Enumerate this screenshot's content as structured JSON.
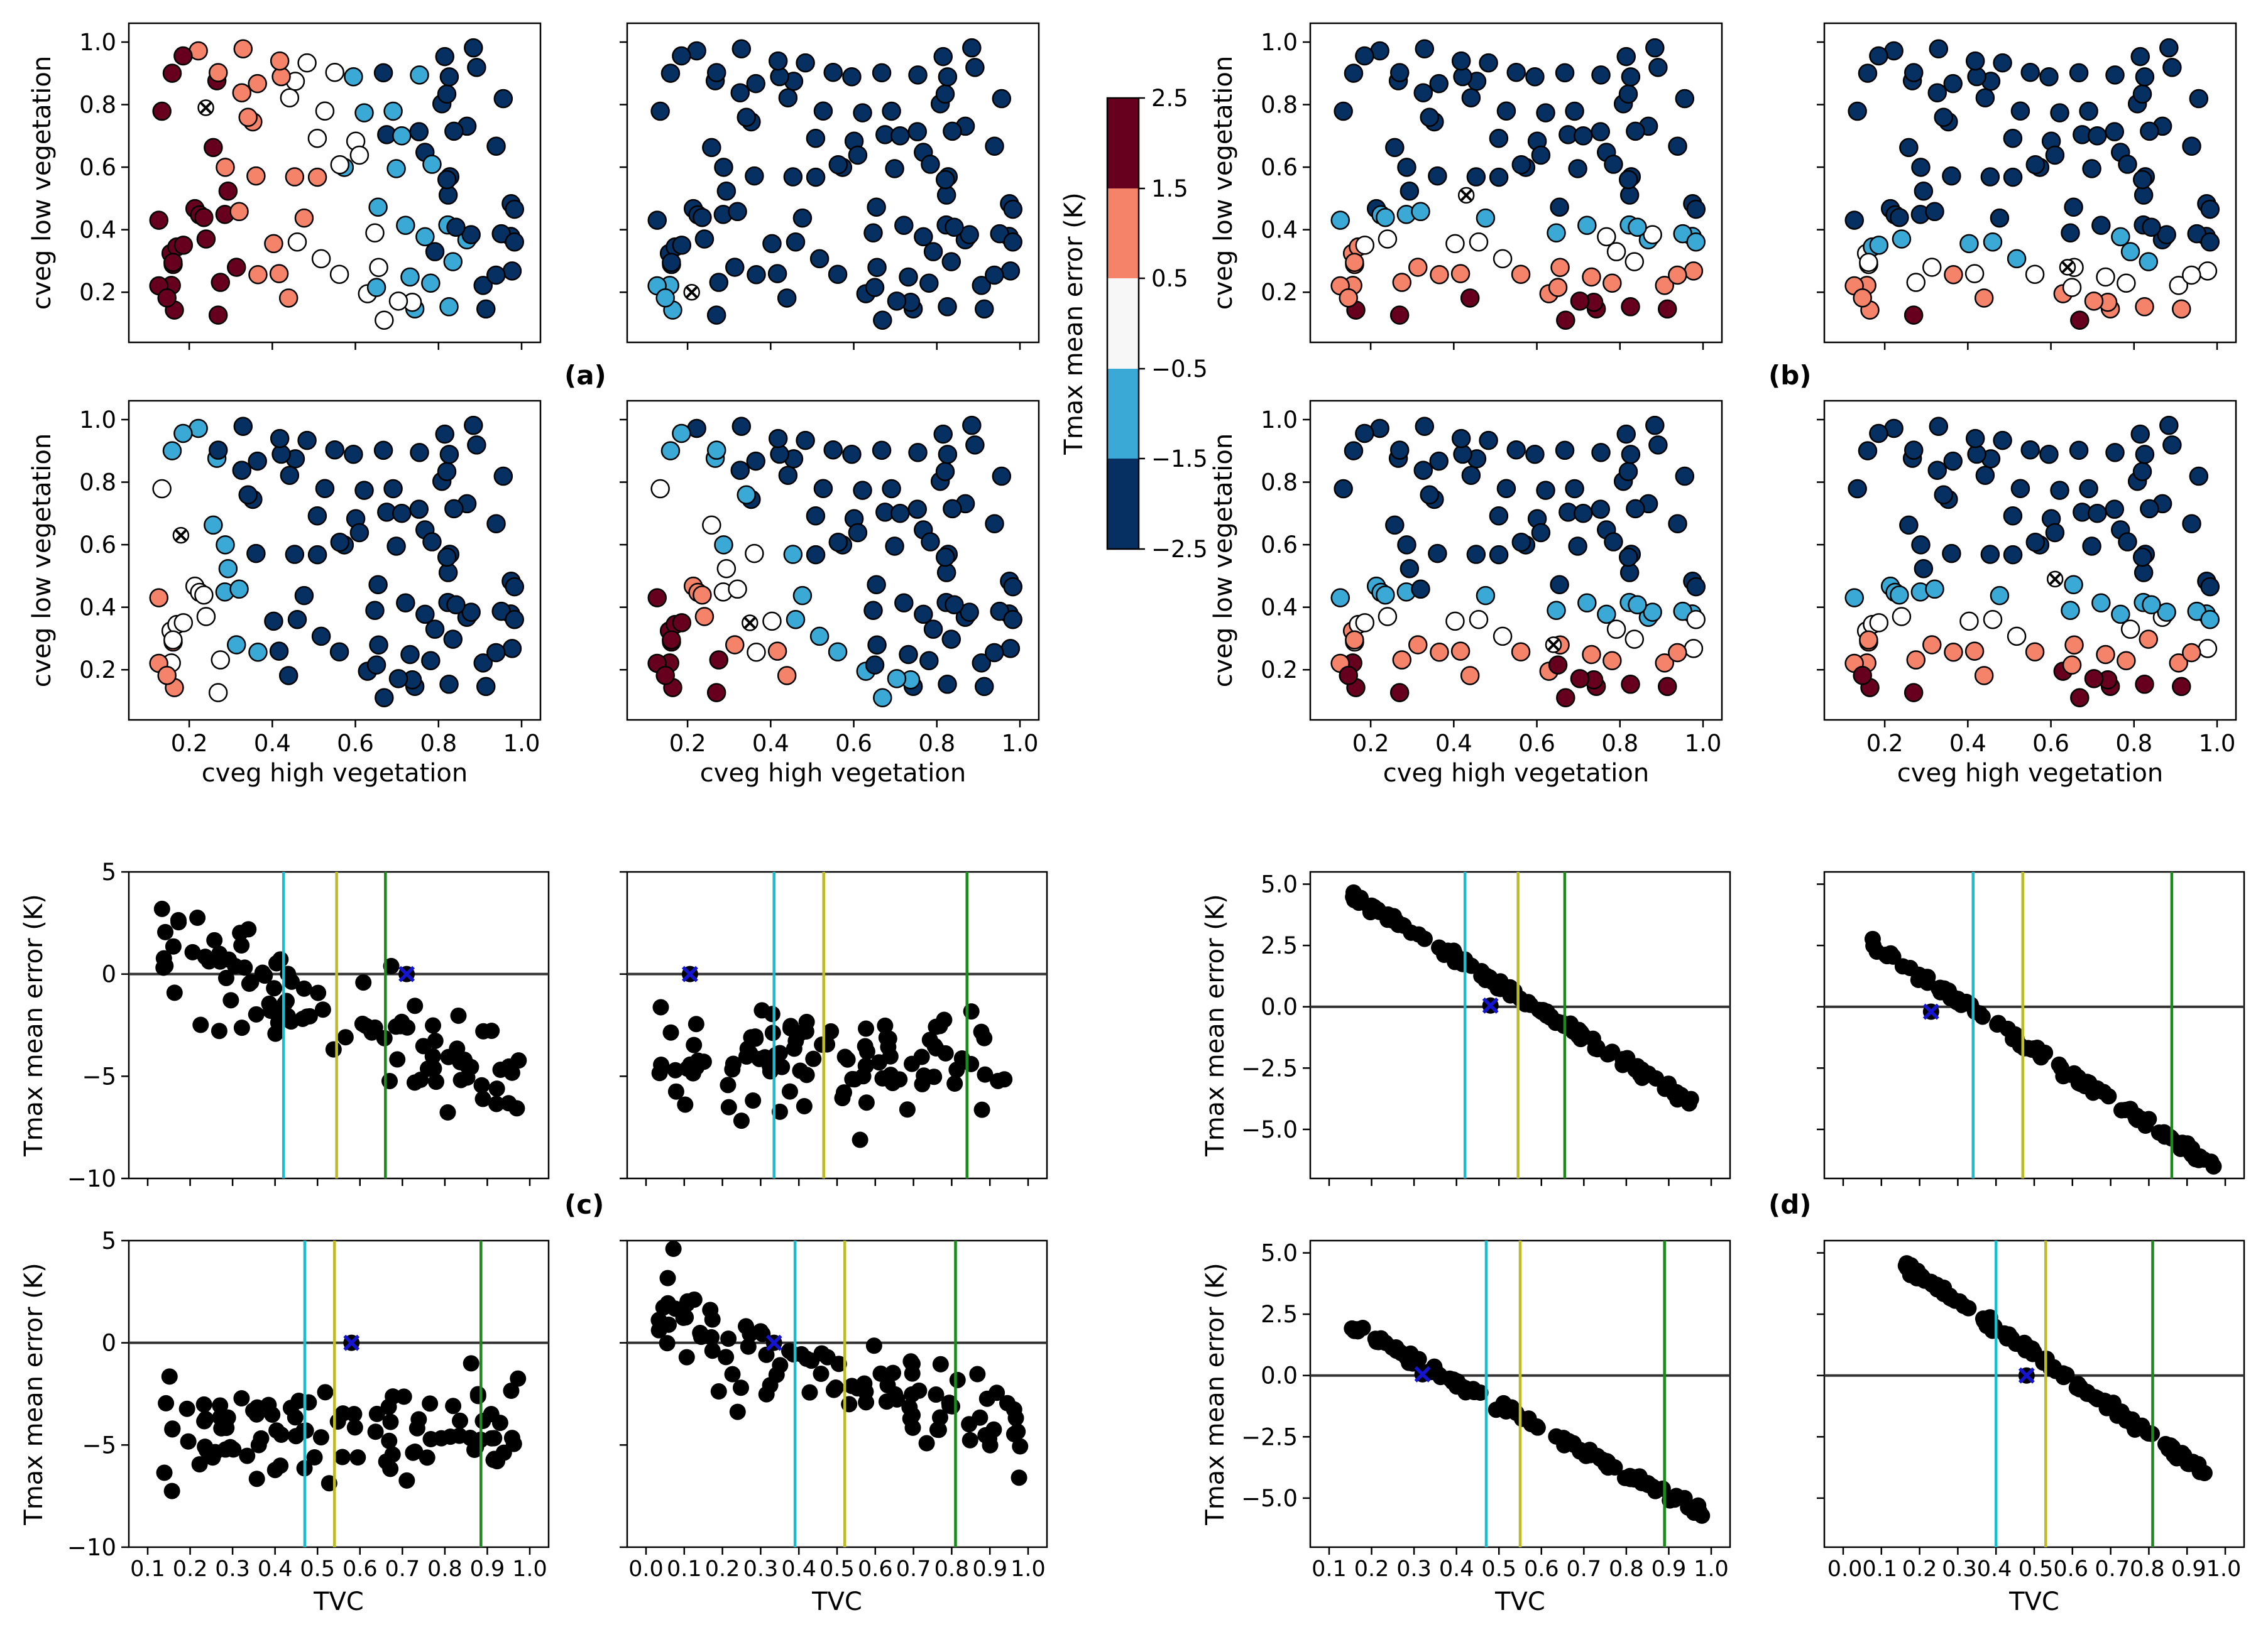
{
  "figure": {
    "panel_labels": [
      "(a)",
      "(b)",
      "(c)",
      "(d)"
    ],
    "colorbar": {
      "label": "Tmax mean error (K)",
      "ticks": [
        "2.5",
        "1.5",
        "0.5",
        "−0.5",
        "−1.5",
        "−2.5"
      ],
      "colors": [
        "#67001f",
        "#f4836a",
        "#f7f7f7",
        "#3ba9d6",
        "#053061"
      ]
    },
    "top_axis_labels": {
      "x": "cveg high vegetation",
      "y": "cveg low vegetation",
      "xticks": [
        "0.2",
        "0.4",
        "0.6",
        "0.8",
        "1.0"
      ],
      "yticks": [
        "1.0",
        "0.8",
        "0.6",
        "0.4",
        "0.2"
      ]
    },
    "bottom_axis_labels": {
      "x": "TVC",
      "y": "Tmax mean error (K)",
      "c_yticks": [
        "5",
        "0",
        "−5",
        "−10"
      ],
      "d_yticks": [
        "5.0",
        "2.5",
        "0.0",
        "−2.5",
        "−5.0"
      ],
      "xticks_1": [
        "0.1",
        "0.2",
        "0.3",
        "0.4",
        "0.5",
        "0.6",
        "0.7",
        "0.8",
        "0.9",
        "1.0"
      ],
      "xticks_0": [
        "0.0",
        "0.1",
        "0.2",
        "0.3",
        "0.4",
        "0.5",
        "0.6",
        "0.7",
        "0.8",
        "0.9",
        "1.0"
      ],
      "xticks_0b": [
        "0.00.1",
        "0.2",
        "0.30.4",
        "0.50.6",
        "0.70.8",
        "0.91.0"
      ]
    }
  },
  "chart_data": [
    {
      "type": "scatter",
      "panel": "(a)",
      "position": "top-left",
      "color_by": "Tmax mean error (K)",
      "marked_point": [
        0.24,
        0.79
      ],
      "regime": "warm-left"
    },
    {
      "type": "scatter",
      "panel": "(a)",
      "position": "top-right",
      "color_by": "Tmax mean error (K)",
      "marked_point": [
        0.21,
        0.2
      ],
      "regime": "cold"
    },
    {
      "type": "scatter",
      "panel": "(a)",
      "position": "bottom-left",
      "color_by": "Tmax mean error (K)",
      "marked_point": [
        0.18,
        0.63
      ],
      "regime": "cold-edge"
    },
    {
      "type": "scatter",
      "panel": "(a)",
      "position": "bottom-right",
      "color_by": "Tmax mean error (K)",
      "marked_point": [
        0.35,
        0.35
      ],
      "regime": "warm-bottom-left"
    },
    {
      "type": "scatter",
      "panel": "(b)",
      "position": "top-left",
      "color_by": "Tmax mean error (K)",
      "marked_point": [
        0.43,
        0.51
      ],
      "regime": "gradient-y"
    },
    {
      "type": "scatter",
      "panel": "(b)",
      "position": "top-right",
      "color_by": "Tmax mean error (K)",
      "marked_point": [
        0.64,
        0.28
      ],
      "regime": "gradient-y-low"
    },
    {
      "type": "scatter",
      "panel": "(b)",
      "position": "bottom-left",
      "color_by": "Tmax mean error (K)",
      "marked_point": [
        0.64,
        0.28
      ],
      "regime": "gradient-y"
    },
    {
      "type": "scatter",
      "panel": "(b)",
      "position": "bottom-right",
      "color_by": "Tmax mean error (K)",
      "marked_point": [
        0.61,
        0.49
      ],
      "regime": "gradient-y"
    },
    {
      "type": "scatter",
      "panel": "(c)",
      "position": "top-left",
      "xlabel": "",
      "ylabel": "Tmax mean error (K)",
      "ylim": [
        -10,
        5
      ],
      "xlim": [
        0.1,
        1.0
      ],
      "vlines": {
        "cyan": 0.42,
        "yellow": 0.545,
        "green": 0.66
      },
      "marked_point": [
        0.71,
        0.0
      ],
      "spread": "wide",
      "slope": -9
    },
    {
      "type": "scatter",
      "panel": "(c)",
      "position": "top-right",
      "xlabel": "",
      "ylabel": "",
      "ylim": [
        -10,
        5
      ],
      "xlim": [
        0.0,
        1.0
      ],
      "vlines": {
        "cyan": 0.335,
        "yellow": 0.465,
        "green": 0.84
      },
      "marked_point": [
        0.115,
        0.0
      ],
      "spread": "wide",
      "slope": -1
    },
    {
      "type": "scatter",
      "panel": "(c)",
      "position": "bottom-left",
      "xlabel": "TVC",
      "ylabel": "Tmax mean error (K)",
      "ylim": [
        -10,
        5
      ],
      "xlim": [
        0.1,
        1.0
      ],
      "vlines": {
        "cyan": 0.47,
        "yellow": 0.54,
        "green": 0.885
      },
      "marked_point": [
        0.58,
        0.0
      ],
      "spread": "wide",
      "slope": -1
    },
    {
      "type": "scatter",
      "panel": "(c)",
      "position": "bottom-right",
      "xlabel": "TVC",
      "ylabel": "",
      "ylim": [
        -10,
        5
      ],
      "xlim": [
        0.0,
        1.0
      ],
      "vlines": {
        "cyan": 0.39,
        "yellow": 0.52,
        "green": 0.81
      },
      "marked_point": [
        0.335,
        0.0
      ],
      "spread": "wide",
      "slope": -7
    },
    {
      "type": "scatter",
      "panel": "(d)",
      "position": "top-left",
      "xlabel": "",
      "ylabel": "Tmax mean error (K)",
      "ylim": [
        -7,
        5.5
      ],
      "xlim": [
        0.1,
        1.0
      ],
      "vlines": {
        "cyan": 0.42,
        "yellow": 0.545,
        "green": 0.655
      },
      "marked_point": [
        0.48,
        0.05
      ],
      "line": {
        "x0": 0.15,
        "y0": 4.6,
        "x1": 0.99,
        "y1": -4.3
      }
    },
    {
      "type": "scatter",
      "panel": "(d)",
      "position": "top-right",
      "xlabel": "",
      "ylabel": "",
      "ylim": [
        -7,
        5.5
      ],
      "xlim": [
        0.0,
        1.0
      ],
      "vlines": {
        "cyan": 0.34,
        "yellow": 0.47,
        "green": 0.86
      },
      "marked_point": [
        0.23,
        -0.2
      ],
      "line": {
        "x0": 0.07,
        "y0": 2.6,
        "x1": 0.97,
        "y1": -6.5
      }
    },
    {
      "type": "scatter",
      "panel": "(d)",
      "position": "bottom-left",
      "xlabel": "TVC",
      "ylabel": "Tmax mean error (K)",
      "ylim": [
        -7,
        5.5
      ],
      "xlim": [
        0.1,
        1.0
      ],
      "vlines": {
        "cyan": 0.47,
        "yellow": 0.55,
        "green": 0.89
      },
      "marked_point": [
        0.32,
        0.05
      ],
      "line": {
        "x0": 0.14,
        "y0": 2.1,
        "x1": 0.99,
        "y1": -5.7
      }
    },
    {
      "type": "scatter",
      "panel": "(d)",
      "position": "bottom-right",
      "xlabel": "TVC",
      "ylabel": "",
      "ylim": [
        -7,
        5.5
      ],
      "xlim": [
        0.0,
        1.0
      ],
      "vlines": {
        "cyan": 0.4,
        "yellow": 0.53,
        "green": 0.81
      },
      "marked_point": [
        0.48,
        0.0
      ],
      "line": {
        "x0": 0.16,
        "y0": 4.5,
        "x1": 0.95,
        "y1": -4.0
      }
    }
  ]
}
